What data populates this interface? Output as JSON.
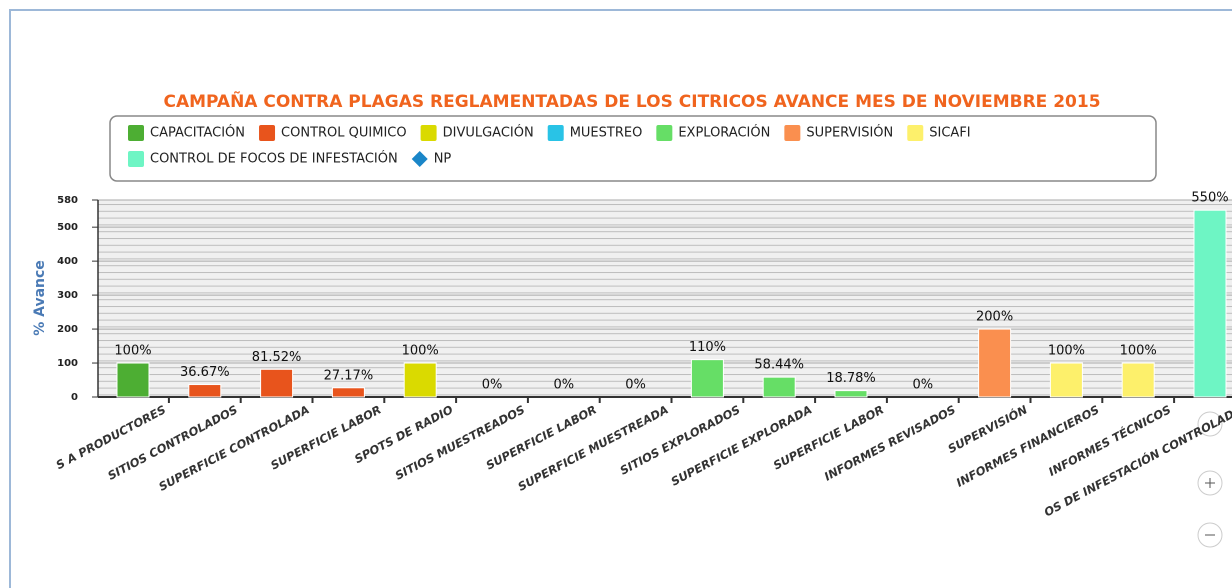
{
  "chart_data": {
    "type": "bar",
    "title": "CAMPAÑA CONTRA PLAGAS REGLAMENTADAS DE LOS CITRICOS AVANCE MES DE NOVIEMBRE 2015",
    "y_label": "% Avance",
    "categories": [
      "S A PRODUCTORES",
      "SITIOS CONTROLADOS",
      "SUPERFICIE CONTROLADA",
      "SUPERFICIE LABOR",
      "SPOTS DE RADIO",
      "SITIOS MUESTREADOS",
      "SUPERFICIE LABOR",
      "SUPERFICIE MUESTREADA",
      "SITIOS EXPLORADOS",
      "SUPERFICIE EXPLORADA",
      "SUPERFICIE LABOR",
      "INFORMES REVISADOS",
      "SUPERVISIÓN",
      "INFORMES FINANCIEROS",
      "INFORMES TÉCNICOS",
      "OS DE INFESTACIÓN CONTROLADO"
    ],
    "series": [
      {
        "name": "CAPACITACIÓN",
        "color": "#4dae33",
        "values": [
          100,
          null,
          null,
          null,
          null,
          null,
          null,
          null,
          null,
          null,
          null,
          null,
          null,
          null,
          null,
          null
        ],
        "value_labels": [
          "100%",
          null,
          null,
          null,
          null,
          null,
          null,
          null,
          null,
          null,
          null,
          null,
          null,
          null,
          null,
          null
        ]
      },
      {
        "name": "CONTROL QUIMICO",
        "color": "#e8541c",
        "values": [
          null,
          36.67,
          81.52,
          27.17,
          null,
          null,
          null,
          null,
          null,
          null,
          null,
          null,
          null,
          null,
          null,
          null
        ],
        "value_labels": [
          null,
          "36.67%",
          "81.52%",
          "27.17%",
          null,
          null,
          null,
          null,
          null,
          null,
          null,
          null,
          null,
          null,
          null,
          null
        ]
      },
      {
        "name": "DIVULGACIÓN",
        "color": "#dada00",
        "values": [
          null,
          null,
          null,
          null,
          100,
          null,
          null,
          null,
          null,
          null,
          null,
          null,
          null,
          null,
          null,
          null
        ],
        "value_labels": [
          null,
          null,
          null,
          null,
          "100%",
          null,
          null,
          null,
          null,
          null,
          null,
          null,
          null,
          null,
          null,
          null
        ]
      },
      {
        "name": "MUESTREO",
        "color": "#29c3e6",
        "values": [
          null,
          null,
          null,
          null,
          null,
          0,
          0,
          0,
          null,
          null,
          null,
          null,
          null,
          null,
          null,
          null
        ],
        "value_labels": [
          null,
          null,
          null,
          null,
          null,
          "0%",
          "0%",
          "0%",
          null,
          null,
          null,
          null,
          null,
          null,
          null,
          null
        ]
      },
      {
        "name": "EXPLORACIÓN",
        "color": "#66de66",
        "values": [
          null,
          null,
          null,
          null,
          null,
          null,
          null,
          null,
          110,
          58.44,
          18.78,
          null,
          null,
          null,
          null,
          null
        ],
        "value_labels": [
          null,
          null,
          null,
          null,
          null,
          null,
          null,
          null,
          "110%",
          "58.44%",
          "18.78%",
          null,
          null,
          null,
          null,
          null
        ]
      },
      {
        "name": "SUPERVISIÓN",
        "color": "#fa8f4f",
        "values": [
          null,
          null,
          null,
          null,
          null,
          null,
          null,
          null,
          null,
          null,
          null,
          0,
          200,
          null,
          null,
          null
        ],
        "value_labels": [
          null,
          null,
          null,
          null,
          null,
          null,
          null,
          null,
          null,
          null,
          null,
          "0%",
          "200%",
          null,
          null,
          null
        ]
      },
      {
        "name": "SICAFI",
        "color": "#fdf06b",
        "values": [
          null,
          null,
          null,
          null,
          null,
          null,
          null,
          null,
          null,
          null,
          null,
          null,
          null,
          100,
          100,
          null
        ],
        "value_labels": [
          null,
          null,
          null,
          null,
          null,
          null,
          null,
          null,
          null,
          null,
          null,
          null,
          null,
          "100%",
          "100%",
          null
        ]
      },
      {
        "name": "CONTROL DE FOCOS DE INFESTACIÓN",
        "color": "#6ef5c4",
        "values": [
          null,
          null,
          null,
          null,
          null,
          null,
          null,
          null,
          null,
          null,
          null,
          null,
          null,
          null,
          null,
          550
        ],
        "value_labels": [
          null,
          null,
          null,
          null,
          null,
          null,
          null,
          null,
          null,
          null,
          null,
          null,
          null,
          null,
          null,
          "550%"
        ]
      },
      {
        "name": "NP",
        "color": "#1a86c8",
        "marker": "diamond",
        "values": [
          null,
          null,
          null,
          null,
          null,
          null,
          null,
          null,
          null,
          null,
          null,
          null,
          null,
          null,
          null,
          null
        ]
      }
    ],
    "ylim": [
      0,
      580
    ],
    "yticks": [
      0,
      100,
      200,
      300,
      400,
      500,
      580
    ],
    "grid": true
  }
}
